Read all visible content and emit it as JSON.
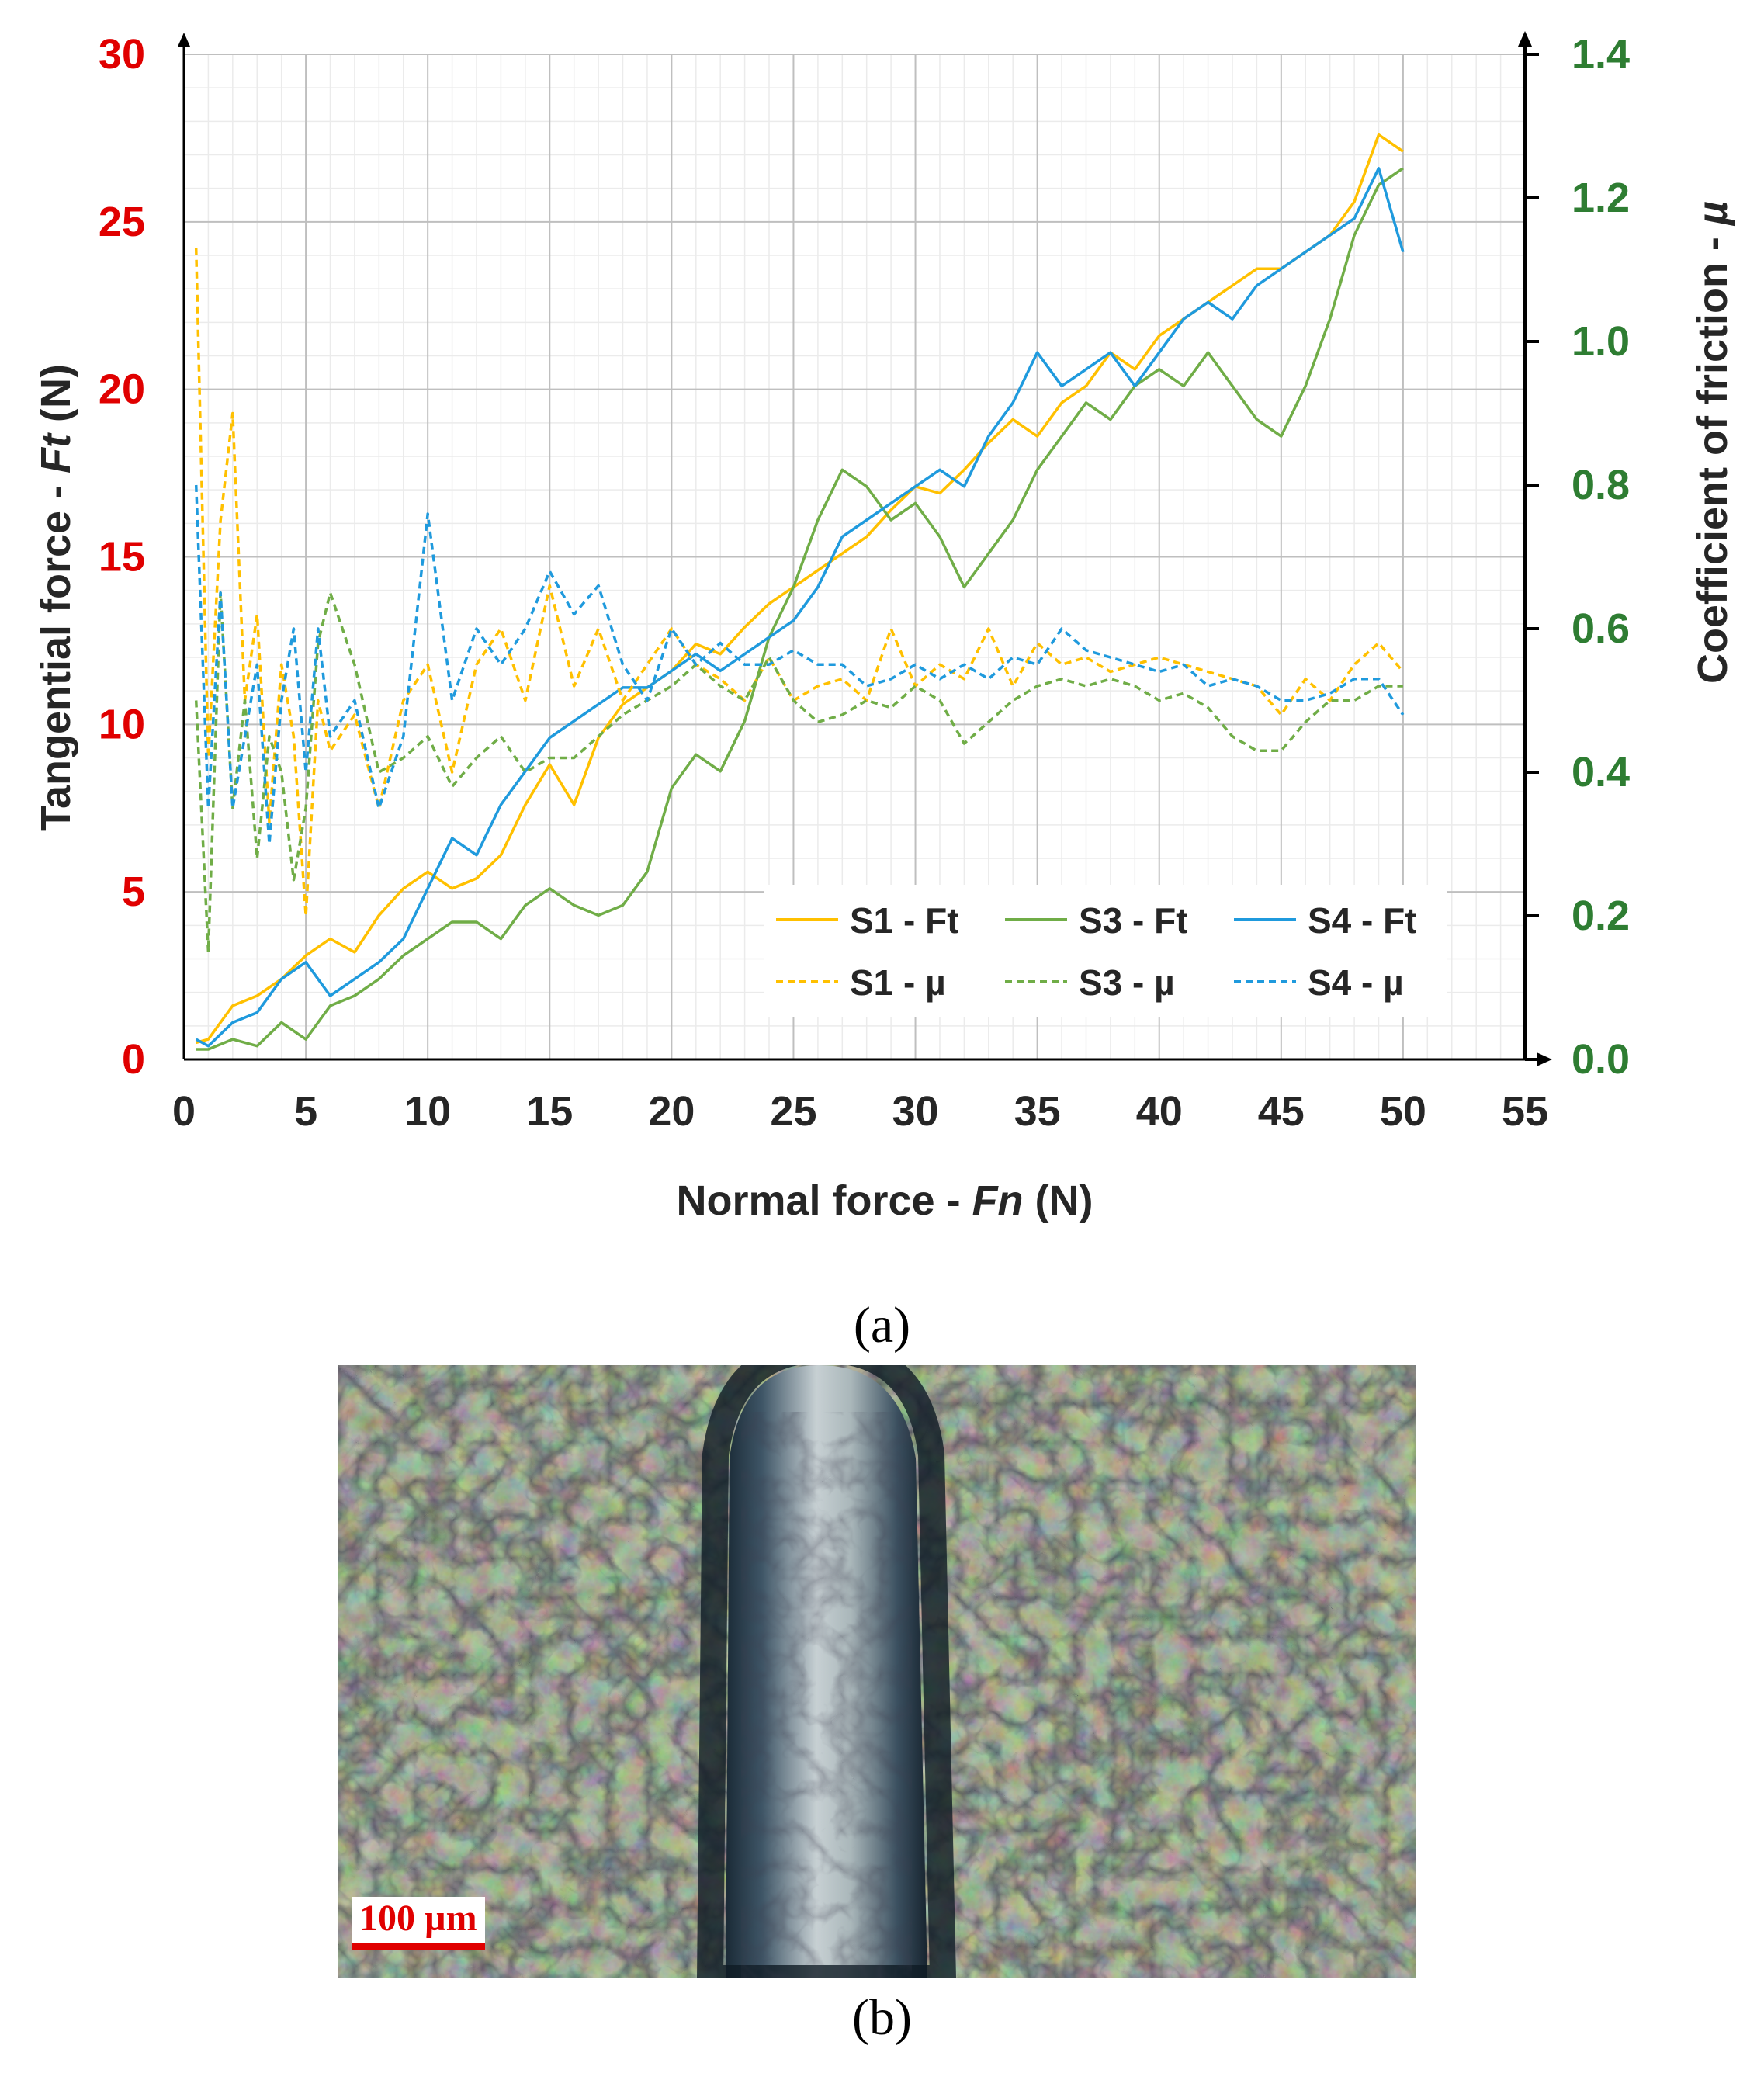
{
  "colors": {
    "s1": "#FFC000",
    "s3": "#70AD47",
    "s4": "#1F9ADD",
    "left_axis_labels": "#E00000",
    "right_axis_labels": "#2E7D32",
    "grid_major": "#BFBFBF",
    "grid_minor": "#EBEBEB"
  },
  "captions": {
    "a": "(a)",
    "b": "(b)"
  },
  "micrograph": {
    "scale_bar_label": "100 µm"
  },
  "chart_data": {
    "type": "line",
    "title": "",
    "xlabel_main": "Normal force - ",
    "xlabel_symbol": "Fn",
    "xlabel_unit": " (N)",
    "ylabel_left_main": "Tangential force - ",
    "ylabel_left_symbol": "Ft",
    "ylabel_left_unit": " (N)",
    "ylabel_right_main": "Coefficient of friction - ",
    "ylabel_right_symbol": "µ",
    "xlim": [
      0,
      55
    ],
    "ylim_left": [
      0,
      30
    ],
    "ylim_right": [
      0,
      1.4
    ],
    "x_ticks": [
      "0",
      "5",
      "10",
      "15",
      "20",
      "25",
      "30",
      "35",
      "40",
      "45",
      "50",
      "55"
    ],
    "y_left_ticks": [
      "0",
      "5",
      "10",
      "15",
      "20",
      "25",
      "30"
    ],
    "y_right_ticks": [
      "0.0",
      "0.2",
      "0.4",
      "0.6",
      "0.8",
      "1.0",
      "1.2",
      "1.4"
    ],
    "grid": "major and minor",
    "legend_position": "bottom-right",
    "legend": [
      "S1 - Ft",
      "S3 - Ft",
      "S4 - Ft",
      "S1 - µ",
      "S3 - µ",
      "S4 - µ"
    ],
    "series": [
      {
        "name": "S1 - Ft",
        "axis": "left",
        "style": "solid",
        "color_key": "s1",
        "x": [
          0.5,
          1,
          2,
          3,
          4,
          5,
          6,
          7,
          8,
          9,
          10,
          11,
          12,
          13,
          14,
          15,
          16,
          17,
          18,
          19,
          20,
          21,
          22,
          23,
          24,
          25,
          26,
          27,
          28,
          29,
          30,
          31,
          32,
          33,
          34,
          35,
          36,
          37,
          38,
          39,
          40,
          41,
          42,
          43,
          44,
          45,
          46,
          47,
          48,
          49,
          50
        ],
        "y": [
          0.5,
          0.6,
          1.6,
          1.9,
          2.4,
          3.1,
          3.6,
          3.2,
          4.3,
          5.1,
          5.6,
          5.1,
          5.4,
          6.1,
          7.6,
          8.8,
          7.6,
          9.6,
          10.6,
          11.1,
          11.6,
          12.4,
          12.1,
          12.9,
          13.6,
          14.1,
          14.6,
          15.1,
          15.6,
          16.4,
          17.1,
          16.9,
          17.6,
          18.4,
          19.1,
          18.6,
          19.6,
          20.1,
          21.1,
          20.6,
          21.6,
          22.1,
          22.6,
          23.1,
          23.6,
          23.6,
          24.1,
          24.6,
          25.6,
          27.6,
          27.1
        ]
      },
      {
        "name": "S3 - Ft",
        "axis": "left",
        "style": "solid",
        "color_key": "s3",
        "x": [
          0.5,
          1,
          2,
          3,
          4,
          5,
          6,
          7,
          8,
          9,
          10,
          11,
          12,
          13,
          14,
          15,
          16,
          17,
          18,
          19,
          20,
          21,
          22,
          23,
          24,
          25,
          26,
          27,
          28,
          29,
          30,
          31,
          32,
          33,
          34,
          35,
          36,
          37,
          38,
          39,
          40,
          41,
          42,
          43,
          44,
          45,
          46,
          47,
          48,
          49,
          50
        ],
        "y": [
          0.3,
          0.3,
          0.6,
          0.4,
          1.1,
          0.6,
          1.6,
          1.9,
          2.4,
          3.1,
          3.6,
          4.1,
          4.1,
          3.6,
          4.6,
          5.1,
          4.6,
          4.3,
          4.6,
          5.6,
          8.1,
          9.1,
          8.6,
          10.1,
          12.6,
          14.1,
          16.1,
          17.6,
          17.1,
          16.1,
          16.6,
          15.6,
          14.1,
          15.1,
          16.1,
          17.6,
          18.6,
          19.6,
          19.1,
          20.1,
          20.6,
          20.1,
          21.1,
          20.1,
          19.1,
          18.6,
          20.1,
          22.1,
          24.6,
          26.1,
          26.6
        ]
      },
      {
        "name": "S4 - Ft",
        "axis": "left",
        "style": "solid",
        "color_key": "s4",
        "x": [
          0.5,
          1,
          2,
          3,
          4,
          5,
          6,
          7,
          8,
          9,
          10,
          11,
          12,
          13,
          14,
          15,
          16,
          17,
          18,
          19,
          20,
          21,
          22,
          23,
          24,
          25,
          26,
          27,
          28,
          29,
          30,
          31,
          32,
          33,
          34,
          35,
          36,
          37,
          38,
          39,
          40,
          41,
          42,
          43,
          44,
          45,
          46,
          47,
          48,
          49,
          50
        ],
        "y": [
          0.6,
          0.4,
          1.1,
          1.4,
          2.4,
          2.9,
          1.9,
          2.4,
          2.9,
          3.6,
          5.1,
          6.6,
          6.1,
          7.6,
          8.6,
          9.6,
          10.1,
          10.6,
          11.1,
          11.1,
          11.6,
          12.1,
          11.6,
          12.1,
          12.6,
          13.1,
          14.1,
          15.6,
          16.1,
          16.6,
          17.1,
          17.6,
          17.1,
          18.6,
          19.6,
          21.1,
          20.1,
          20.6,
          21.1,
          20.1,
          21.1,
          22.1,
          22.6,
          22.1,
          23.1,
          23.6,
          24.1,
          24.6,
          25.1,
          26.6,
          24.1
        ]
      },
      {
        "name": "S1 - µ",
        "axis": "right",
        "style": "dashed",
        "color_key": "s1",
        "x": [
          0.5,
          1,
          1.5,
          2,
          2.5,
          3,
          3.5,
          4,
          4.5,
          5,
          5.5,
          6,
          7,
          8,
          9,
          10,
          11,
          12,
          13,
          14,
          15,
          16,
          17,
          18,
          19,
          20,
          21,
          22,
          23,
          24,
          25,
          26,
          27,
          28,
          29,
          30,
          31,
          32,
          33,
          34,
          35,
          36,
          37,
          38,
          39,
          40,
          41,
          42,
          43,
          44,
          45,
          46,
          47,
          48,
          49,
          50
        ],
        "y": [
          1.13,
          0.42,
          0.75,
          0.9,
          0.5,
          0.62,
          0.33,
          0.55,
          0.45,
          0.2,
          0.5,
          0.43,
          0.48,
          0.35,
          0.5,
          0.55,
          0.4,
          0.55,
          0.6,
          0.5,
          0.66,
          0.52,
          0.6,
          0.5,
          0.55,
          0.6,
          0.55,
          0.53,
          0.5,
          0.56,
          0.5,
          0.52,
          0.53,
          0.5,
          0.6,
          0.52,
          0.55,
          0.53,
          0.6,
          0.52,
          0.58,
          0.55,
          0.56,
          0.54,
          0.55,
          0.56,
          0.55,
          0.54,
          0.53,
          0.52,
          0.48,
          0.53,
          0.5,
          0.55,
          0.58,
          0.54
        ]
      },
      {
        "name": "S3 - µ",
        "axis": "right",
        "style": "dashed",
        "color_key": "s3",
        "x": [
          0.5,
          1,
          1.5,
          2,
          2.5,
          3,
          3.5,
          4,
          4.5,
          5,
          5.5,
          6,
          7,
          8,
          9,
          10,
          11,
          12,
          13,
          14,
          15,
          16,
          17,
          18,
          19,
          20,
          21,
          22,
          23,
          24,
          25,
          26,
          27,
          28,
          29,
          30,
          31,
          32,
          33,
          34,
          35,
          36,
          37,
          38,
          39,
          40,
          41,
          42,
          43,
          44,
          45,
          46,
          47,
          48,
          49,
          50
        ],
        "y": [
          0.5,
          0.15,
          0.65,
          0.35,
          0.5,
          0.28,
          0.45,
          0.4,
          0.25,
          0.35,
          0.58,
          0.65,
          0.55,
          0.4,
          0.42,
          0.45,
          0.38,
          0.42,
          0.45,
          0.4,
          0.42,
          0.42,
          0.45,
          0.48,
          0.5,
          0.52,
          0.55,
          0.52,
          0.5,
          0.56,
          0.5,
          0.47,
          0.48,
          0.5,
          0.49,
          0.52,
          0.5,
          0.44,
          0.47,
          0.5,
          0.52,
          0.53,
          0.52,
          0.53,
          0.52,
          0.5,
          0.51,
          0.49,
          0.45,
          0.43,
          0.43,
          0.47,
          0.5,
          0.5,
          0.52,
          0.52
        ]
      },
      {
        "name": "S4 - µ",
        "axis": "right",
        "style": "dashed",
        "color_key": "s4",
        "x": [
          0.5,
          1,
          1.5,
          2,
          2.5,
          3,
          3.5,
          4,
          4.5,
          5,
          5.5,
          6,
          7,
          8,
          9,
          10,
          11,
          12,
          13,
          14,
          15,
          16,
          17,
          18,
          19,
          20,
          21,
          22,
          23,
          24,
          25,
          26,
          27,
          28,
          29,
          30,
          31,
          32,
          33,
          34,
          35,
          36,
          37,
          38,
          39,
          40,
          41,
          42,
          43,
          44,
          45,
          46,
          47,
          48,
          49,
          50
        ],
        "y": [
          0.8,
          0.35,
          0.65,
          0.35,
          0.45,
          0.55,
          0.3,
          0.5,
          0.6,
          0.4,
          0.6,
          0.45,
          0.5,
          0.35,
          0.45,
          0.76,
          0.5,
          0.6,
          0.55,
          0.6,
          0.68,
          0.62,
          0.66,
          0.55,
          0.5,
          0.6,
          0.55,
          0.58,
          0.55,
          0.55,
          0.57,
          0.55,
          0.55,
          0.52,
          0.53,
          0.55,
          0.53,
          0.55,
          0.53,
          0.56,
          0.55,
          0.6,
          0.57,
          0.56,
          0.55,
          0.54,
          0.55,
          0.52,
          0.53,
          0.52,
          0.5,
          0.5,
          0.51,
          0.53,
          0.53,
          0.48
        ]
      }
    ]
  }
}
